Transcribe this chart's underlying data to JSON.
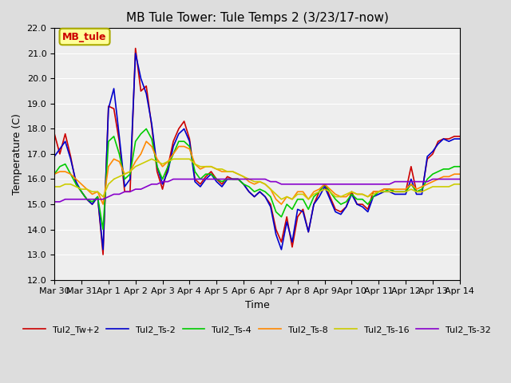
{
  "title": "MB Tule Tower: Tule Temps 2 (3/23/17-now)",
  "xlabel": "Time",
  "ylabel": "Temperature (C)",
  "ylim": [
    12.0,
    22.0
  ],
  "yticks": [
    12.0,
    13.0,
    14.0,
    15.0,
    16.0,
    17.0,
    18.0,
    19.0,
    20.0,
    21.0,
    22.0
  ],
  "x_labels": [
    "Mar 30",
    "Mar 31",
    "Apr 1",
    "Apr 2",
    "Apr 3",
    "Apr 4",
    "Apr 5",
    "Apr 6",
    "Apr 7",
    "Apr 8",
    "Apr 9",
    "Apr 10",
    "Apr 11",
    "Apr 12",
    "Apr 13",
    "Apr 14"
  ],
  "legend_labels": [
    "Tul2_Tw+2",
    "Tul2_Ts-2",
    "Tul2_Ts-4",
    "Tul2_Ts-8",
    "Tul2_Ts-16",
    "Tul2_Ts-32"
  ],
  "legend_colors": [
    "#cc0000",
    "#0000cc",
    "#00cc00",
    "#ff8800",
    "#cccc00",
    "#8800cc"
  ],
  "annotation_text": "MB_tule",
  "annotation_color": "#cc0000",
  "annotation_bg": "#ffff99",
  "annotation_border": "#aaaa00",
  "background_color": "#dddddd",
  "plot_bg": "#eeeeee",
  "grid_color": "#ffffff",
  "title_fontsize": 11,
  "figwidth": 6.4,
  "figheight": 4.8,
  "dpi": 100,
  "red": [
    17.8,
    17.0,
    17.8,
    16.9,
    15.8,
    15.5,
    15.2,
    15.0,
    15.3,
    13.0,
    18.9,
    18.8,
    17.5,
    15.5,
    15.5,
    21.2,
    19.5,
    19.7,
    18.1,
    16.3,
    15.6,
    16.5,
    17.5,
    18.0,
    18.3,
    17.6,
    16.0,
    15.8,
    16.1,
    16.3,
    16.0,
    15.8,
    16.1,
    16.0,
    16.0,
    15.8,
    15.5,
    15.3,
    15.5,
    15.3,
    15.0,
    14.0,
    13.5,
    14.5,
    13.3,
    14.5,
    14.8,
    13.9,
    15.0,
    15.5,
    15.8,
    15.3,
    14.8,
    14.7,
    14.9,
    15.5,
    15.0,
    15.0,
    14.8,
    15.5,
    15.5,
    15.6,
    15.6,
    15.5,
    15.5,
    15.5,
    16.5,
    15.5,
    15.5,
    16.8,
    17.0,
    17.5,
    17.6,
    17.6,
    17.7,
    17.7
  ],
  "blue": [
    16.9,
    17.2,
    17.5,
    16.8,
    15.9,
    15.5,
    15.2,
    15.0,
    15.3,
    13.2,
    18.8,
    19.6,
    17.7,
    15.7,
    16.0,
    21.0,
    20.0,
    19.4,
    18.2,
    16.5,
    15.8,
    16.3,
    17.3,
    17.8,
    18.0,
    17.5,
    15.9,
    15.7,
    16.0,
    16.2,
    15.9,
    15.7,
    16.0,
    16.0,
    16.0,
    15.8,
    15.5,
    15.3,
    15.5,
    15.3,
    14.9,
    13.8,
    13.2,
    14.3,
    13.5,
    14.8,
    14.7,
    13.9,
    15.0,
    15.3,
    15.7,
    15.2,
    14.7,
    14.6,
    14.9,
    15.4,
    15.0,
    14.9,
    14.7,
    15.3,
    15.4,
    15.5,
    15.5,
    15.4,
    15.4,
    15.4,
    16.0,
    15.4,
    15.4,
    16.9,
    17.1,
    17.4,
    17.6,
    17.5,
    17.6,
    17.6
  ],
  "green": [
    16.2,
    16.5,
    16.6,
    16.2,
    15.8,
    15.5,
    15.2,
    15.1,
    15.3,
    14.0,
    17.5,
    17.7,
    17.0,
    16.0,
    16.2,
    17.5,
    17.8,
    18.0,
    17.6,
    16.5,
    16.0,
    16.5,
    17.0,
    17.5,
    17.5,
    17.3,
    16.3,
    16.0,
    16.2,
    16.2,
    16.0,
    15.9,
    16.0,
    16.0,
    16.0,
    15.8,
    15.7,
    15.5,
    15.6,
    15.5,
    15.3,
    14.7,
    14.5,
    15.0,
    14.8,
    15.2,
    15.2,
    14.8,
    15.3,
    15.5,
    15.8,
    15.5,
    15.2,
    15.0,
    15.1,
    15.4,
    15.2,
    15.2,
    15.0,
    15.3,
    15.5,
    15.5,
    15.6,
    15.5,
    15.5,
    15.5,
    15.8,
    15.5,
    15.6,
    16.0,
    16.2,
    16.3,
    16.4,
    16.4,
    16.5,
    16.5
  ],
  "orange": [
    16.2,
    16.3,
    16.3,
    16.2,
    16.0,
    15.8,
    15.6,
    15.4,
    15.5,
    15.0,
    16.5,
    16.8,
    16.7,
    16.2,
    16.3,
    16.7,
    17.0,
    17.5,
    17.3,
    16.8,
    16.5,
    16.7,
    17.0,
    17.3,
    17.3,
    17.2,
    16.6,
    16.4,
    16.5,
    16.5,
    16.4,
    16.3,
    16.3,
    16.3,
    16.2,
    16.1,
    15.9,
    15.8,
    15.9,
    15.8,
    15.6,
    15.2,
    15.0,
    15.3,
    15.2,
    15.5,
    15.5,
    15.2,
    15.5,
    15.6,
    15.8,
    15.6,
    15.4,
    15.3,
    15.3,
    15.5,
    15.4,
    15.4,
    15.3,
    15.5,
    15.5,
    15.6,
    15.6,
    15.6,
    15.6,
    15.6,
    15.8,
    15.6,
    15.7,
    15.8,
    15.9,
    16.0,
    16.1,
    16.1,
    16.2,
    16.2
  ],
  "yellow": [
    15.7,
    15.7,
    15.8,
    15.8,
    15.7,
    15.6,
    15.6,
    15.5,
    15.5,
    15.3,
    15.8,
    16.0,
    16.1,
    16.2,
    16.3,
    16.5,
    16.6,
    16.7,
    16.8,
    16.7,
    16.6,
    16.7,
    16.8,
    16.8,
    16.8,
    16.8,
    16.6,
    16.5,
    16.5,
    16.5,
    16.4,
    16.4,
    16.3,
    16.3,
    16.2,
    16.1,
    16.0,
    15.9,
    15.9,
    15.8,
    15.6,
    15.4,
    15.2,
    15.3,
    15.2,
    15.4,
    15.4,
    15.2,
    15.4,
    15.5,
    15.6,
    15.5,
    15.3,
    15.3,
    15.4,
    15.5,
    15.4,
    15.4,
    15.3,
    15.4,
    15.5,
    15.5,
    15.5,
    15.5,
    15.5,
    15.5,
    15.6,
    15.5,
    15.5,
    15.6,
    15.7,
    15.7,
    15.7,
    15.7,
    15.8,
    15.8
  ],
  "purple": [
    15.1,
    15.1,
    15.2,
    15.2,
    15.2,
    15.2,
    15.2,
    15.2,
    15.2,
    15.2,
    15.3,
    15.4,
    15.4,
    15.5,
    15.5,
    15.6,
    15.6,
    15.7,
    15.8,
    15.8,
    15.9,
    15.9,
    16.0,
    16.0,
    16.0,
    16.0,
    16.0,
    16.0,
    16.0,
    16.0,
    16.0,
    16.0,
    16.0,
    16.0,
    16.0,
    16.0,
    16.0,
    16.0,
    16.0,
    16.0,
    15.9,
    15.9,
    15.8,
    15.8,
    15.8,
    15.8,
    15.8,
    15.8,
    15.8,
    15.8,
    15.8,
    15.8,
    15.8,
    15.8,
    15.8,
    15.8,
    15.8,
    15.8,
    15.8,
    15.8,
    15.8,
    15.8,
    15.8,
    15.9,
    15.9,
    15.9,
    15.9,
    15.9,
    15.9,
    15.9,
    16.0,
    16.0,
    16.0,
    16.0,
    16.0,
    16.0
  ]
}
